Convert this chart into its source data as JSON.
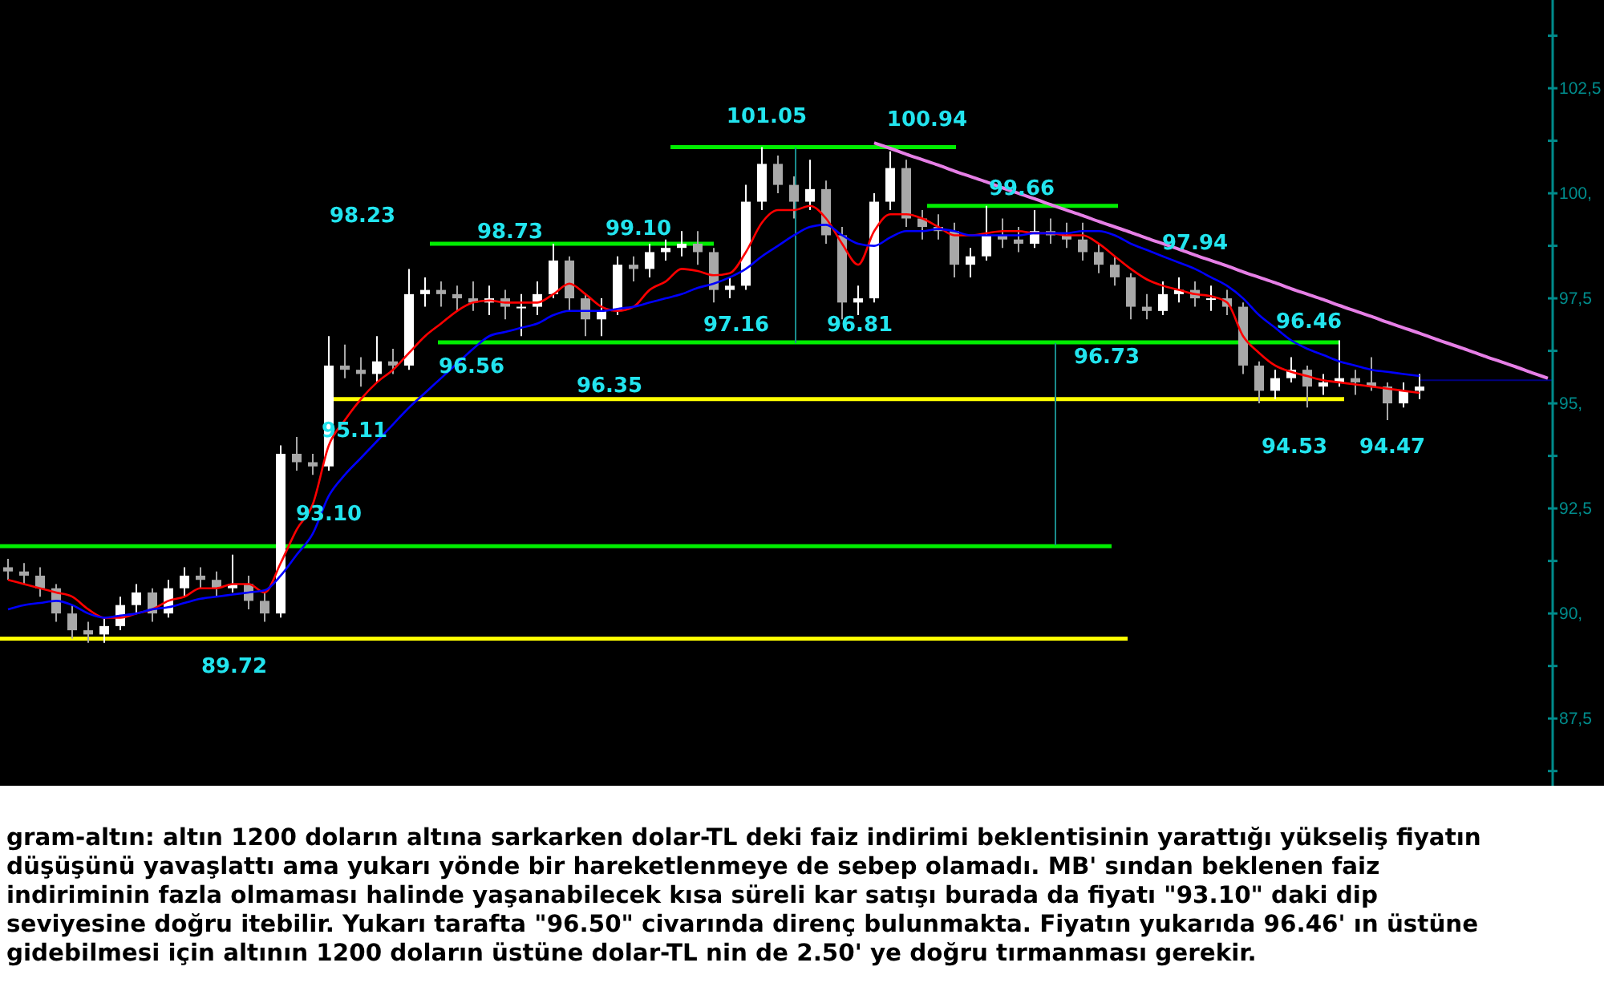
{
  "chart_data": {
    "type": "candlestick",
    "categories": [
      null,
      null,
      null,
      null,
      null,
      null,
      null,
      null,
      null,
      null,
      null,
      null,
      null,
      null,
      null,
      null,
      null,
      null,
      null,
      null,
      null,
      null,
      null,
      null,
      null,
      null,
      null,
      null,
      null,
      null,
      null,
      null,
      null,
      null,
      null,
      null,
      null,
      null,
      null,
      null,
      null,
      null,
      null,
      null,
      null,
      null,
      null,
      null,
      null,
      null,
      null,
      null,
      null,
      null,
      null,
      null,
      null,
      null,
      null,
      null,
      null,
      null,
      null,
      null,
      null,
      null,
      null,
      null,
      null,
      null,
      null,
      null,
      null,
      null,
      null,
      null,
      null,
      null,
      null,
      null,
      null,
      null,
      null,
      null,
      null,
      null,
      null,
      null,
      null,
      null,
      null,
      null,
      null,
      null,
      null,
      null,
      null
    ],
    "ohlc": [
      [
        91.1,
        91.3,
        90.8,
        91.0
      ],
      [
        91.0,
        91.2,
        90.7,
        90.9
      ],
      [
        90.9,
        91.1,
        90.4,
        90.6
      ],
      [
        90.6,
        90.7,
        89.8,
        90.0
      ],
      [
        90.0,
        90.2,
        89.4,
        89.6
      ],
      [
        89.6,
        89.8,
        89.3,
        89.5
      ],
      [
        89.5,
        89.9,
        89.3,
        89.7
      ],
      [
        89.7,
        90.4,
        89.6,
        90.2
      ],
      [
        90.2,
        90.7,
        90.0,
        90.5
      ],
      [
        90.5,
        90.6,
        89.8,
        90.0
      ],
      [
        90.0,
        90.8,
        89.9,
        90.6
      ],
      [
        90.6,
        91.1,
        90.4,
        90.9
      ],
      [
        90.9,
        91.1,
        90.6,
        90.8
      ],
      [
        90.8,
        91.0,
        90.4,
        90.6
      ],
      [
        90.6,
        91.4,
        90.5,
        90.7
      ],
      [
        90.7,
        90.9,
        90.1,
        90.3
      ],
      [
        90.3,
        90.5,
        89.8,
        90.0
      ],
      [
        90.0,
        94.0,
        89.9,
        93.8
      ],
      [
        93.8,
        94.2,
        93.4,
        93.6
      ],
      [
        93.6,
        93.8,
        93.3,
        93.5
      ],
      [
        93.5,
        96.6,
        93.4,
        95.9
      ],
      [
        95.9,
        96.4,
        95.6,
        95.8
      ],
      [
        95.8,
        96.1,
        95.4,
        95.7
      ],
      [
        95.7,
        96.6,
        95.5,
        96.0
      ],
      [
        96.0,
        96.3,
        95.7,
        95.9
      ],
      [
        95.9,
        98.2,
        95.8,
        97.6
      ],
      [
        97.6,
        98.0,
        97.3,
        97.7
      ],
      [
        97.7,
        97.9,
        97.3,
        97.6
      ],
      [
        97.6,
        97.8,
        97.2,
        97.5
      ],
      [
        97.5,
        97.9,
        97.2,
        97.4
      ],
      [
        97.4,
        97.8,
        97.1,
        97.5
      ],
      [
        97.5,
        97.7,
        97.0,
        97.3
      ],
      [
        97.3,
        97.6,
        96.6,
        97.3
      ],
      [
        97.3,
        97.9,
        97.1,
        97.6
      ],
      [
        97.6,
        98.8,
        97.5,
        98.4
      ],
      [
        98.4,
        98.5,
        97.2,
        97.5
      ],
      [
        97.5,
        97.6,
        96.6,
        97.0
      ],
      [
        97.0,
        97.5,
        96.6,
        97.2
      ],
      [
        97.2,
        98.5,
        97.1,
        98.3
      ],
      [
        98.3,
        98.5,
        97.9,
        98.2
      ],
      [
        98.2,
        98.8,
        98.0,
        98.6
      ],
      [
        98.6,
        98.9,
        98.4,
        98.7
      ],
      [
        98.7,
        99.1,
        98.5,
        98.8
      ],
      [
        98.8,
        99.1,
        98.3,
        98.6
      ],
      [
        98.6,
        98.7,
        97.4,
        97.7
      ],
      [
        97.7,
        98.0,
        97.5,
        97.8
      ],
      [
        97.8,
        100.2,
        97.7,
        99.8
      ],
      [
        99.8,
        101.1,
        99.6,
        100.7
      ],
      [
        100.7,
        100.9,
        100.0,
        100.2
      ],
      [
        100.2,
        100.4,
        99.4,
        99.8
      ],
      [
        99.8,
        100.8,
        99.6,
        100.1
      ],
      [
        100.1,
        100.3,
        98.8,
        99.0
      ],
      [
        99.0,
        99.2,
        97.0,
        97.4
      ],
      [
        97.4,
        97.8,
        97.1,
        97.5
      ],
      [
        97.5,
        100.0,
        97.4,
        99.8
      ],
      [
        99.8,
        101.0,
        99.6,
        100.6
      ],
      [
        100.6,
        100.8,
        99.2,
        99.4
      ],
      [
        99.4,
        99.6,
        98.9,
        99.2
      ],
      [
        99.2,
        99.5,
        98.9,
        99.1
      ],
      [
        99.1,
        99.3,
        98.0,
        98.3
      ],
      [
        98.3,
        98.7,
        98.0,
        98.5
      ],
      [
        98.5,
        99.7,
        98.4,
        99.0
      ],
      [
        99.0,
        99.4,
        98.7,
        98.9
      ],
      [
        98.9,
        99.2,
        98.6,
        98.8
      ],
      [
        98.8,
        99.6,
        98.7,
        99.1
      ],
      [
        99.1,
        99.4,
        98.8,
        99.0
      ],
      [
        99.0,
        99.3,
        98.7,
        98.9
      ],
      [
        98.9,
        99.3,
        98.4,
        98.6
      ],
      [
        98.6,
        98.8,
        98.1,
        98.3
      ],
      [
        98.3,
        98.5,
        97.8,
        98.0
      ],
      [
        98.0,
        98.1,
        97.0,
        97.3
      ],
      [
        97.3,
        97.6,
        97.0,
        97.2
      ],
      [
        97.2,
        97.9,
        97.1,
        97.6
      ],
      [
        97.6,
        98.0,
        97.4,
        97.7
      ],
      [
        97.7,
        97.9,
        97.3,
        97.5
      ],
      [
        97.5,
        97.8,
        97.2,
        97.5
      ],
      [
        97.5,
        97.7,
        97.1,
        97.3
      ],
      [
        97.3,
        97.4,
        95.7,
        95.9
      ],
      [
        95.9,
        96.0,
        95.0,
        95.3
      ],
      [
        95.3,
        95.8,
        95.1,
        95.6
      ],
      [
        95.6,
        96.1,
        95.5,
        95.8
      ],
      [
        95.8,
        95.9,
        94.9,
        95.4
      ],
      [
        95.4,
        95.7,
        95.2,
        95.5
      ],
      [
        95.5,
        96.5,
        95.4,
        95.6
      ],
      [
        95.6,
        95.8,
        95.2,
        95.5
      ],
      [
        95.5,
        96.1,
        95.3,
        95.4
      ],
      [
        95.4,
        95.5,
        94.6,
        95.0
      ],
      [
        95.0,
        95.5,
        94.9,
        95.3
      ],
      [
        95.3,
        95.7,
        95.1,
        95.4
      ],
      null,
      null,
      null,
      null,
      null,
      null,
      null,
      null
    ],
    "series": [
      {
        "type": "line",
        "color": "#ff0000",
        "values": [
          90.8,
          90.7,
          90.6,
          90.5,
          90.4,
          90.1,
          89.9,
          89.9,
          90.0,
          90.1,
          90.3,
          90.4,
          90.6,
          90.6,
          90.7,
          90.7,
          90.5,
          91.2,
          92.0,
          92.6,
          94.0,
          94.6,
          95.1,
          95.5,
          95.8,
          96.2,
          96.6,
          96.9,
          97.2,
          97.4,
          97.45,
          97.4,
          97.4,
          97.4,
          97.6,
          97.85,
          97.6,
          97.3,
          97.2,
          97.3,
          97.7,
          97.9,
          98.2,
          98.15,
          98.05,
          98.1,
          98.6,
          99.3,
          99.6,
          99.6,
          99.7,
          99.4,
          98.8,
          98.3,
          99.1,
          99.5,
          99.5,
          99.4,
          99.2,
          99.0,
          99.0,
          99.05,
          99.1,
          99.1,
          99.05,
          99.05,
          99.0,
          99.0,
          98.8,
          98.5,
          98.2,
          97.95,
          97.8,
          97.7,
          97.6,
          97.55,
          97.4,
          96.6,
          96.2,
          95.9,
          95.75,
          95.65,
          95.55,
          95.5,
          95.45,
          95.4,
          95.35,
          95.3,
          95.25,
          null,
          null,
          null,
          null,
          null,
          null,
          null,
          null
        ]
      },
      {
        "type": "line",
        "color": "#0000ff",
        "values": [
          90.1,
          90.2,
          90.25,
          90.3,
          90.2,
          90.0,
          89.9,
          89.95,
          90.0,
          90.1,
          90.15,
          90.25,
          90.35,
          90.4,
          90.45,
          90.5,
          90.55,
          90.9,
          91.4,
          91.9,
          92.8,
          93.3,
          93.7,
          94.1,
          94.5,
          94.9,
          95.25,
          95.6,
          95.95,
          96.3,
          96.6,
          96.7,
          96.8,
          96.9,
          97.1,
          97.2,
          97.2,
          97.2,
          97.25,
          97.3,
          97.4,
          97.5,
          97.6,
          97.75,
          97.85,
          98.0,
          98.2,
          98.5,
          98.75,
          99.0,
          99.2,
          99.25,
          99.0,
          98.8,
          98.75,
          98.95,
          99.1,
          99.1,
          99.15,
          99.1,
          99.0,
          99.0,
          99.0,
          99.0,
          99.05,
          99.05,
          99.05,
          99.1,
          99.1,
          99.0,
          98.8,
          98.65,
          98.5,
          98.35,
          98.2,
          98.0,
          97.8,
          97.5,
          97.1,
          96.8,
          96.5,
          96.3,
          96.15,
          96.0,
          95.9,
          95.8,
          95.75,
          95.7,
          95.65,
          null,
          null,
          null,
          null,
          null,
          null,
          null,
          null
        ]
      },
      {
        "type": "line",
        "color": "#e67fe6",
        "values": [
          null,
          null,
          null,
          null,
          null,
          null,
          null,
          null,
          null,
          null,
          null,
          null,
          null,
          null,
          null,
          null,
          null,
          null,
          null,
          null,
          null,
          null,
          null,
          null,
          null,
          null,
          null,
          null,
          null,
          null,
          null,
          null,
          null,
          null,
          null,
          null,
          null,
          null,
          null,
          null,
          null,
          null,
          null,
          null,
          null,
          null,
          null,
          null,
          null,
          null,
          null,
          null,
          null,
          null,
          101.2,
          101.07,
          100.93,
          100.8,
          100.67,
          100.53,
          100.4,
          100.27,
          100.13,
          100.0,
          99.87,
          99.73,
          99.6,
          99.47,
          99.33,
          99.2,
          99.07,
          98.93,
          98.8,
          98.67,
          98.53,
          98.4,
          98.27,
          98.13,
          98.0,
          97.87,
          97.73,
          97.6,
          97.47,
          97.33,
          97.2,
          97.07,
          96.93,
          96.8,
          96.67,
          96.53,
          96.4,
          96.27,
          96.13,
          96.0,
          95.87,
          95.73,
          95.6
        ]
      }
    ],
    "ylim": [
      85.9,
      104.6
    ],
    "yticks": [
      {
        "value": 86.25,
        "label": null
      },
      {
        "value": 87.5,
        "label": "87,5"
      },
      {
        "value": 88.75,
        "label": null
      },
      {
        "value": 90,
        "label": "90,"
      },
      {
        "value": 91.25,
        "label": null
      },
      {
        "value": 92.5,
        "label": "92,5"
      },
      {
        "value": 93.75,
        "label": null
      },
      {
        "value": 95,
        "label": "95,"
      },
      {
        "value": 96.25,
        "label": null
      },
      {
        "value": 97.5,
        "label": "97,5"
      },
      {
        "value": 98.75,
        "label": null
      },
      {
        "value": 100,
        "label": "100,"
      },
      {
        "value": 101.25,
        "label": null
      },
      {
        "value": 102.5,
        "label": "102,5"
      },
      {
        "value": 103.75,
        "label": null
      }
    ],
    "tick_labels": "y",
    "ref_lines": [
      {
        "axis": "y",
        "value": 91.6,
        "color": "#00ee00"
      },
      {
        "axis": "y",
        "value": 89.4,
        "color": "#ffff00"
      },
      {
        "axis": "y",
        "value": 95.1,
        "color": "#ffff00"
      },
      {
        "axis": "y",
        "value": 96.45,
        "color": "#00ee00"
      },
      {
        "axis": "y",
        "value": 98.8,
        "color": "#00ee00"
      },
      {
        "axis": "y",
        "value": 101.1,
        "color": "#00ee00"
      },
      {
        "axis": "y",
        "value": 99.7,
        "color": "#00ee00"
      },
      {
        "axis": "y",
        "value": 95.55,
        "color": "#000080"
      }
    ],
    "annotations": [
      "101.05",
      "100.94",
      "98.23",
      "98.73",
      "99.10",
      "99.66",
      "97.94",
      "97.16",
      "96.81",
      "96.56",
      "96.73",
      "96.35",
      "96.46",
      "95.11",
      "93.10",
      "94.53",
      "94.47",
      "89.72",
      "gram-altın: altın 1200 doların altına sarkarken dolar-TL deki faiz indirimi beklentisinin yarattığı yükseliş fiyatın düşüşünü yavaşlattı ama yukarı yönde bir hareketlenmeye de sebep olamadı. MB' sından beklenen faiz indiriminin fazla olmaması halinde yaşanabilecek kısa süreli kar satışı burada da fiyatı \"93.10\" daki dip seviyesine doğru itebilir. Yukarı tarafta \"96.50\" civarında direnç bulunmakta. Fiyatın yukarıda 96.46' ın üstüne gidebilmesi için altının 1200 doların üstüne dolar-TL nin de 2.50' ye doğru tırmanması gerekir."
    ]
  }
}
